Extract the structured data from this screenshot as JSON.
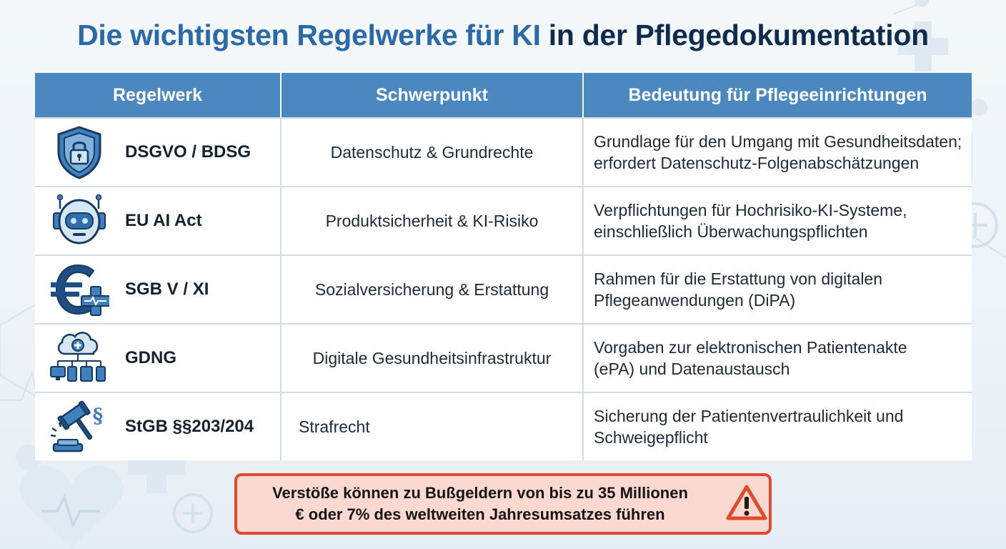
{
  "title": {
    "part1": "Die wichtigsten Regelwerke für KI",
    "part2": "in der Pflegedokumentation"
  },
  "table": {
    "headers": [
      "Regelwerk",
      "Schwerpunkt",
      "Bedeutung für Pflegeeinrichtungen"
    ],
    "rows": [
      {
        "icon": "shield-lock-icon",
        "name": "DSGVO / BDSG",
        "focus": "Datenschutz & Grundrechte",
        "meaning": [
          "Grundlage für den Umgang mit Gesundheitsdaten;",
          "erfordert Datenschutz-Folgenabschätzungen"
        ]
      },
      {
        "icon": "robot-icon",
        "name": "EU AI Act",
        "focus": "Produktsicherheit & KI-Risiko",
        "meaning": [
          "Verpflichtungen für Hochrisiko-KI-Systeme,",
          "einschließlich Überwachungspflichten"
        ]
      },
      {
        "icon": "euro-plus-icon",
        "name": "SGB V / XI",
        "focus": "Sozialversicherung & Erstattung",
        "meaning": [
          "Rahmen für die Erstattung von digitalen",
          "Pflegeanwendungen (DiPA)"
        ]
      },
      {
        "icon": "cloud-network-icon",
        "name": "GDNG",
        "focus": "Digitale Gesundheitsinfrastruktur",
        "meaning": [
          "Vorgaben zur elektronischen Patientenakte",
          "(ePA) und Datenaustausch"
        ]
      },
      {
        "icon": "gavel-paragraph-icon",
        "name": "StGB §§203/204",
        "focus": "Strafrecht",
        "meaning": [
          "Sicherung der Patientenvertraulichkeit und",
          "Schweigepflicht"
        ]
      }
    ]
  },
  "warning": {
    "lines": [
      "Verstöße können zu Bußgeldern von bis zu 35 Millionen",
      "€ oder 7% des weltweiten Jahresumsatzes führen"
    ],
    "icon": "warning-triangle-icon"
  },
  "colors": {
    "title_accent": "#2a6aa8",
    "title_dark": "#0f2c4f",
    "header_bg": "#4a88bf",
    "warning_border": "#e0492c",
    "warning_bg": "#fbd9d0"
  }
}
